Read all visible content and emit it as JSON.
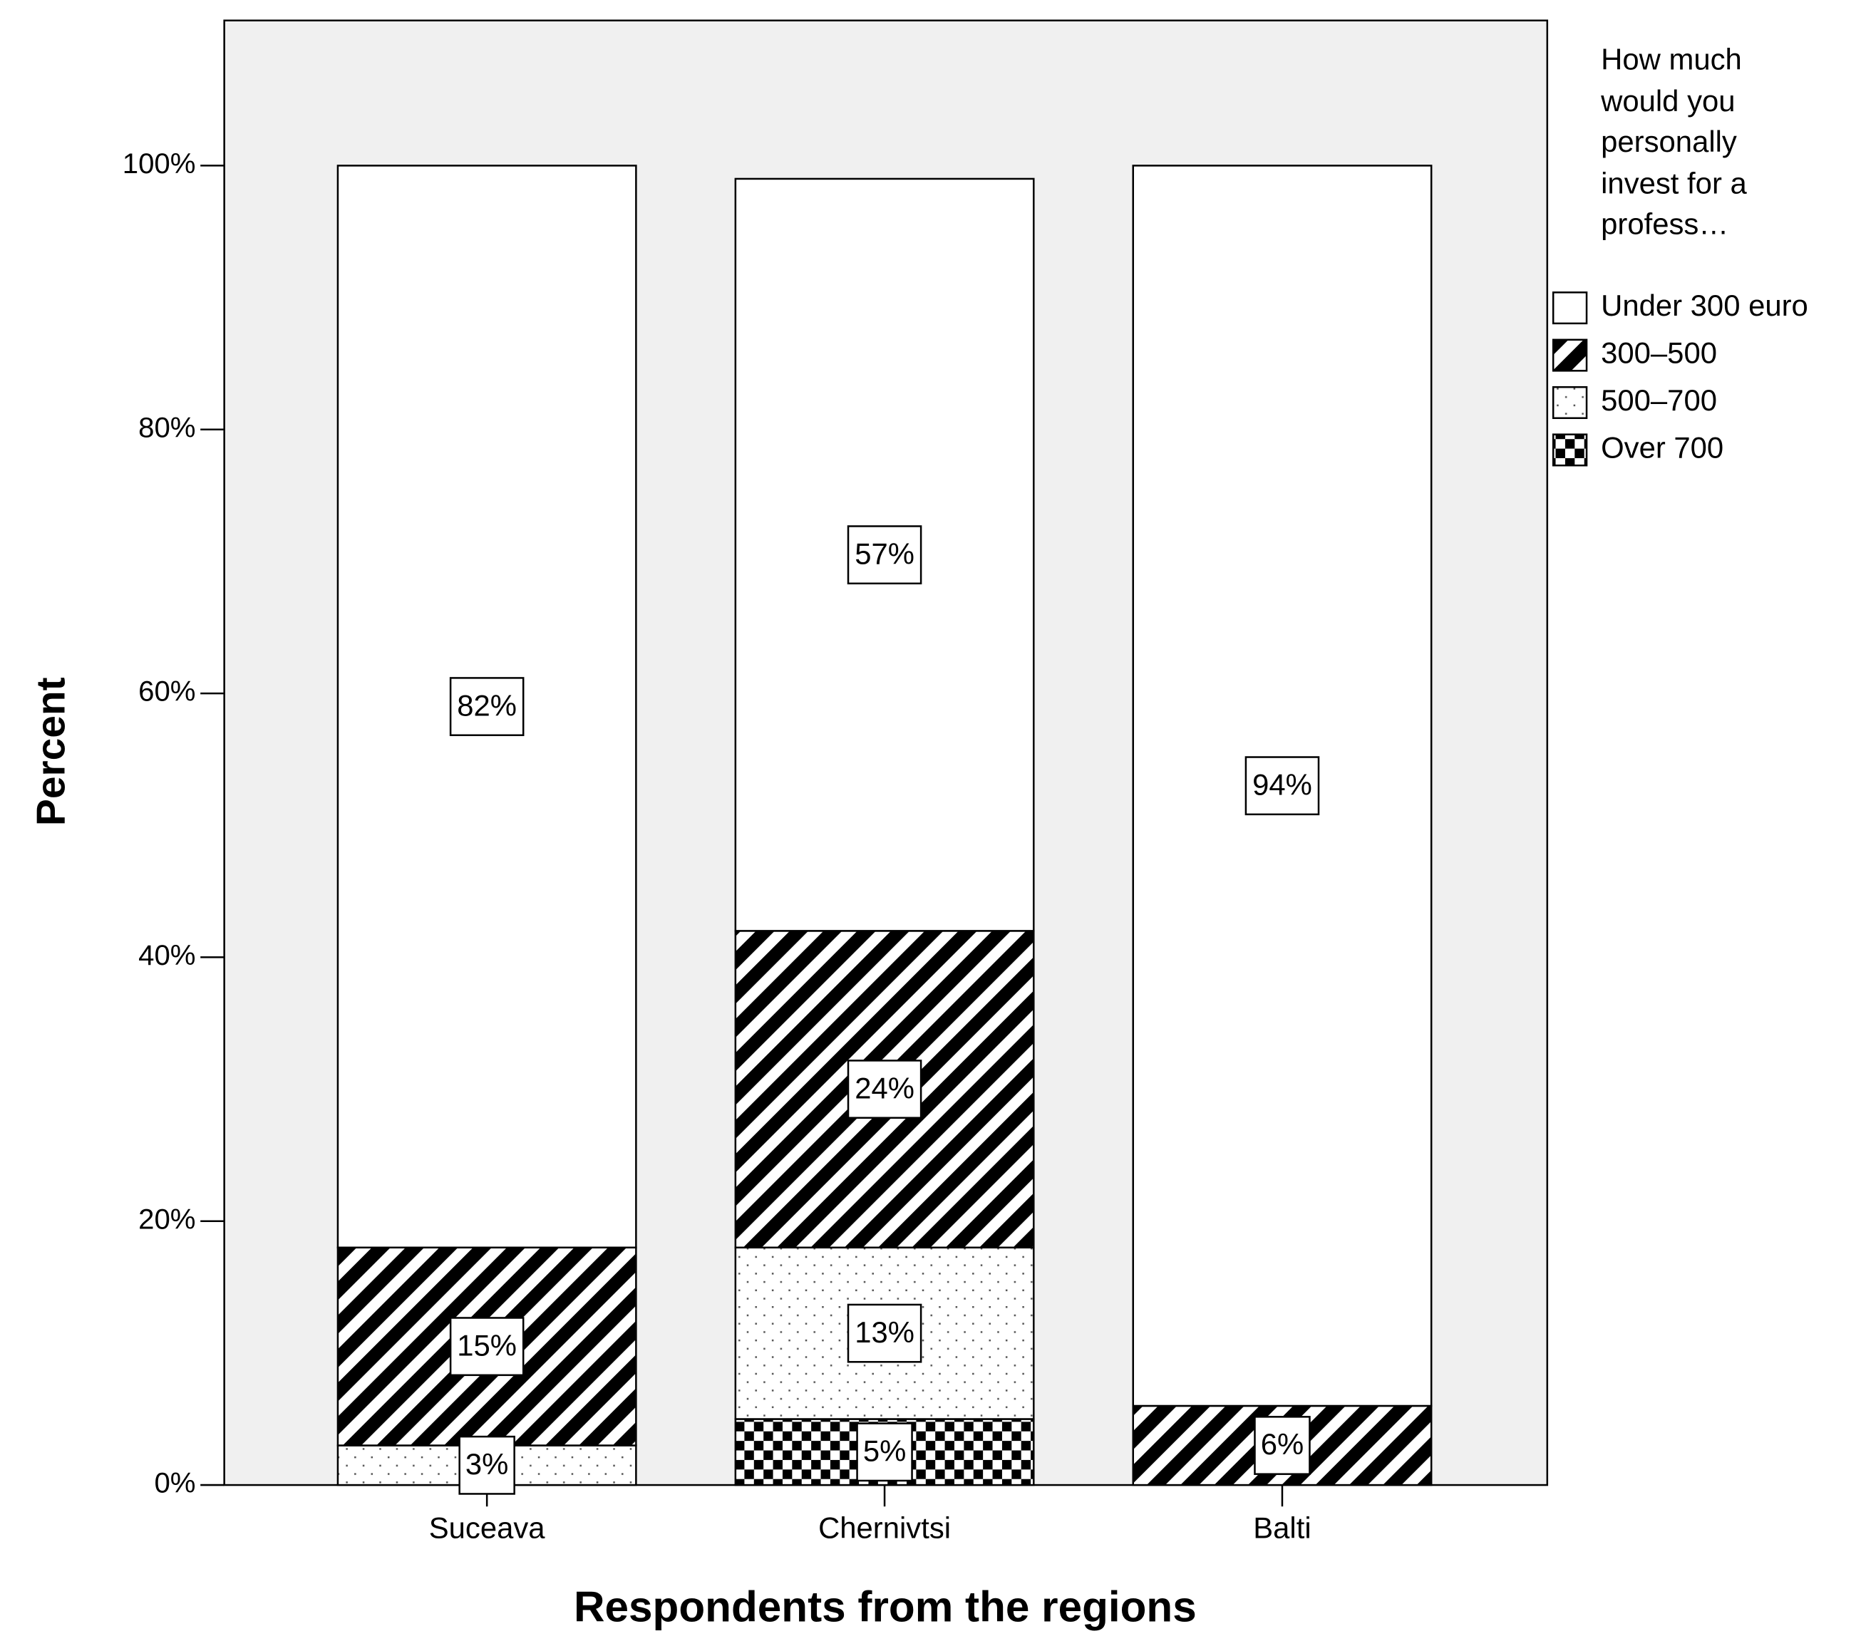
{
  "chart_data": {
    "type": "stacked_bar",
    "x_label": "Respondents from the regions",
    "y_label": "Percent",
    "legend_title": "How much would you personally invest for a profess…",
    "legend_position": "right",
    "categories": [
      "Suceava",
      "Chernivtsi",
      "Balti"
    ],
    "series": [
      {
        "name": "Under 300 euro",
        "color": "#ffffff",
        "pattern": "none",
        "values": [
          82,
          57,
          94
        ],
        "value_labels": [
          "82%",
          "57%",
          "94%"
        ]
      },
      {
        "name": "300–500",
        "color": "#000000",
        "pattern": "diagonal",
        "values": [
          15,
          24,
          6
        ],
        "value_labels": [
          "15%",
          "24%",
          "6%"
        ]
      },
      {
        "name": "500–700",
        "color": "#000000",
        "pattern": "dots",
        "values": [
          3,
          13,
          null
        ],
        "value_labels": [
          "3%",
          "13%",
          null
        ]
      },
      {
        "name": "Over 700",
        "color": "#000000",
        "pattern": "checker",
        "values": [
          null,
          5,
          null
        ],
        "value_labels": [
          null,
          "5%",
          null
        ]
      }
    ],
    "ylim": [
      0,
      111
    ],
    "yticks": [
      {
        "value": 0,
        "label": "0%"
      },
      {
        "value": 20,
        "label": "20%"
      },
      {
        "value": 40,
        "label": "40%"
      },
      {
        "value": 60,
        "label": "60%"
      },
      {
        "value": 80,
        "label": "80%"
      },
      {
        "value": 100,
        "label": "100%"
      }
    ],
    "grid": false
  }
}
